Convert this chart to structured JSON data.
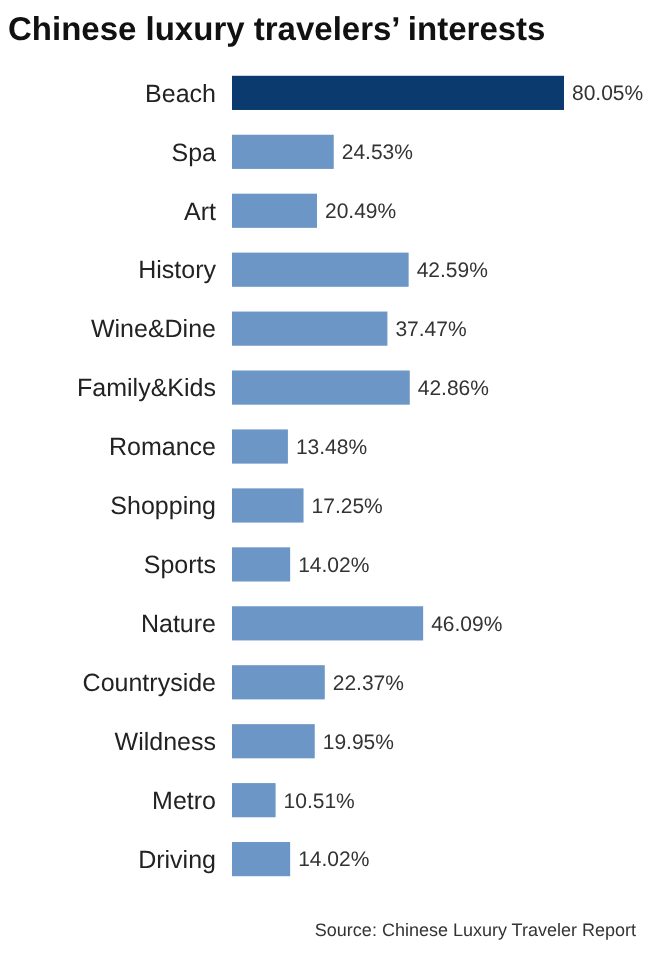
{
  "chart_data": {
    "type": "bar",
    "orientation": "horizontal",
    "title": "Chinese luxury travelers’ interests",
    "categories": [
      "Beach",
      "Spa",
      "Art",
      "History",
      "Wine&Dine",
      "Family&Kids",
      "Romance",
      "Shopping",
      "Sports",
      "Nature",
      "Countryside",
      "Wildness",
      "Metro",
      "Driving"
    ],
    "values": [
      80.05,
      24.53,
      20.49,
      42.59,
      37.47,
      42.86,
      13.48,
      17.25,
      14.02,
      46.09,
      22.37,
      19.95,
      10.51,
      14.02
    ],
    "value_labels": [
      "80.05%",
      "24.53%",
      "20.49%",
      "42.59%",
      "37.47%",
      "42.86%",
      "13.48%",
      "17.25%",
      "14.02%",
      "46.09%",
      "22.37%",
      "19.95%",
      "10.51%",
      "14.02%"
    ],
    "colors": [
      "#0b3b6e",
      "#6b96c6",
      "#6b96c6",
      "#6b96c6",
      "#6b96c6",
      "#6b96c6",
      "#6b96c6",
      "#6b96c6",
      "#6b96c6",
      "#6b96c6",
      "#6b96c6",
      "#6b96c6",
      "#6b96c6",
      "#6b96c6"
    ],
    "annotations": [
      "Source: Chinese Luxury Traveler Report"
    ]
  }
}
